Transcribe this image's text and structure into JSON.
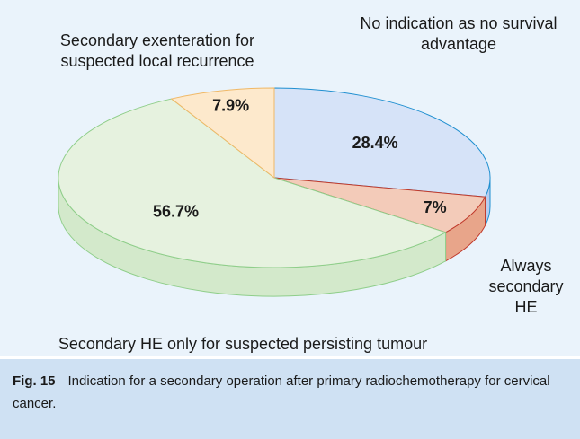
{
  "chart_data": {
    "type": "pie3d",
    "categories": [
      "No indication as no survival advantage",
      "Always secondary HE",
      "Secondary HE only for suspected persisting tumour",
      "Secondary exenteration for suspected local recurrence"
    ],
    "values": [
      28.4,
      7,
      56.7,
      7.9
    ],
    "value_labels": [
      "28.4%",
      "7%",
      "56.7%",
      "7.9%"
    ],
    "colors": [
      "#d6e3f8",
      "#f3cbb9",
      "#e6f2df",
      "#fde9cc"
    ],
    "caption_label": "Fig. 15",
    "caption": "Indication for a secondary operation after primary radiochemotherapy for cervical cancer."
  }
}
